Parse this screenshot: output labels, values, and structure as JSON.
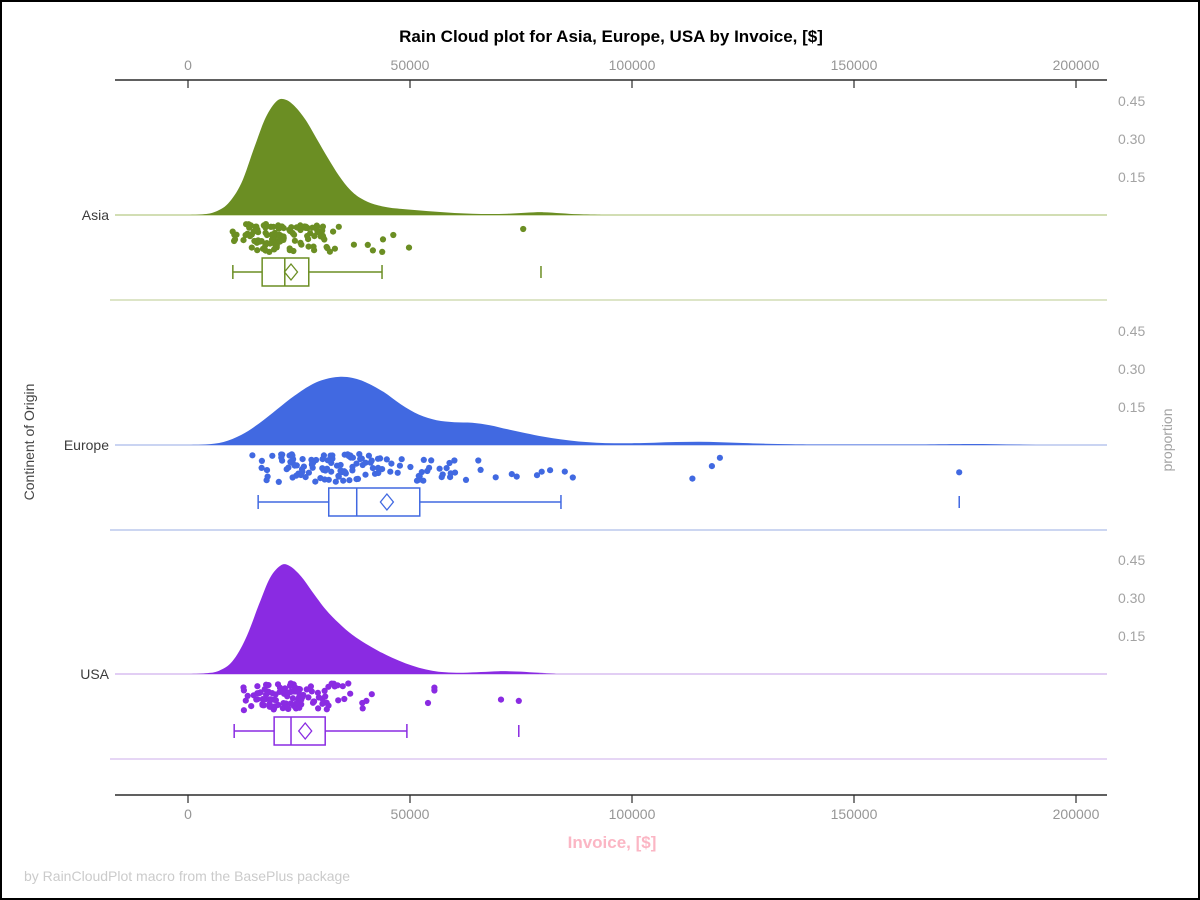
{
  "title": "Rain Cloud plot for Asia, Europe, USA by Invoice, [$]",
  "xlabel": "Invoice, [$]",
  "ylabel_left": "Continent of Origin",
  "ylabel_right": "proportion",
  "footer": "by RainCloudPlot macro from the BasePlus package",
  "colors": {
    "xlabel_pink": "#FBB6C4",
    "tick_gray": "#969696",
    "footer_gray": "#cbcbcb",
    "asia_green": "#6B8E23",
    "europe_blue": "#4169E1",
    "usa_purple": "#8A2BE2"
  },
  "axis": {
    "min": 0,
    "max": 200000,
    "ticks": [
      0,
      50000,
      100000,
      150000,
      200000
    ],
    "tick_labels": [
      "0",
      "50000",
      "100000",
      "150000",
      "200000"
    ]
  },
  "proportion_tick_labels": [
    "0.45",
    "0.30",
    "0.15"
  ],
  "chart_data": {
    "type": "raincloud",
    "x_axis": {
      "label": "Invoice, [$]",
      "min": 0,
      "max": 200000,
      "ticks": [
        0,
        50000,
        100000,
        150000,
        200000
      ]
    },
    "proportion_axis": {
      "label": "proportion",
      "ticks": [
        0.15,
        0.3,
        0.45
      ]
    },
    "categories": [
      "Asia",
      "Europe",
      "USA"
    ],
    "groups": [
      {
        "name": "Asia",
        "color": "#6B8E23",
        "baseline_color": "#c3d39b",
        "separator_color": "#dde5c7",
        "density_proportion_by_value": [
          [
            0,
            0
          ],
          [
            3000,
            0.002
          ],
          [
            6000,
            0.012
          ],
          [
            9000,
            0.045
          ],
          [
            12000,
            0.125
          ],
          [
            15000,
            0.27
          ],
          [
            17500,
            0.385
          ],
          [
            20000,
            0.45
          ],
          [
            22000,
            0.455
          ],
          [
            24000,
            0.43
          ],
          [
            26500,
            0.375
          ],
          [
            29000,
            0.3
          ],
          [
            31500,
            0.225
          ],
          [
            34000,
            0.155
          ],
          [
            36500,
            0.1
          ],
          [
            39000,
            0.065
          ],
          [
            42000,
            0.042
          ],
          [
            45000,
            0.03
          ],
          [
            48000,
            0.024
          ],
          [
            52000,
            0.018
          ],
          [
            56000,
            0.013
          ],
          [
            60000,
            0.008
          ],
          [
            64000,
            0.005
          ],
          [
            68000,
            0.004
          ],
          [
            72000,
            0.005
          ],
          [
            76000,
            0.009
          ],
          [
            80000,
            0.011
          ],
          [
            84000,
            0.007
          ],
          [
            88000,
            0.003
          ],
          [
            93000,
            0.001
          ],
          [
            100000,
            0
          ],
          [
            200000,
            0
          ]
        ],
        "box": {
          "whisker_low": 10100,
          "q1": 16700,
          "median": 21800,
          "mean": 23200,
          "q3": 27200,
          "whisker_high": 43700,
          "outliers": [
            79500
          ]
        },
        "rain": {
          "n": 118,
          "seed": 11,
          "median": 22000,
          "log_sigma": 0.34,
          "clamp_min": 9800,
          "clamp_max": 56000,
          "extra_values": [
            75500
          ]
        }
      },
      {
        "name": "Europe",
        "color": "#4169E1",
        "baseline_color": "#b9c6ee",
        "separator_color": "#ccd6f1",
        "density_proportion_by_value": [
          [
            0,
            0
          ],
          [
            4000,
            0.002
          ],
          [
            8000,
            0.012
          ],
          [
            12000,
            0.04
          ],
          [
            16000,
            0.085
          ],
          [
            20000,
            0.14
          ],
          [
            24000,
            0.195
          ],
          [
            28000,
            0.24
          ],
          [
            31000,
            0.26
          ],
          [
            34000,
            0.269
          ],
          [
            37000,
            0.265
          ],
          [
            40000,
            0.248
          ],
          [
            44000,
            0.21
          ],
          [
            48000,
            0.16
          ],
          [
            52000,
            0.12
          ],
          [
            56000,
            0.098
          ],
          [
            60000,
            0.09
          ],
          [
            64000,
            0.088
          ],
          [
            68000,
            0.078
          ],
          [
            72000,
            0.062
          ],
          [
            76000,
            0.047
          ],
          [
            80000,
            0.033
          ],
          [
            84000,
            0.022
          ],
          [
            88000,
            0.014
          ],
          [
            92000,
            0.009
          ],
          [
            96000,
            0.007
          ],
          [
            100000,
            0.007
          ],
          [
            105000,
            0.009
          ],
          [
            110000,
            0.012
          ],
          [
            115000,
            0.013
          ],
          [
            120000,
            0.011
          ],
          [
            125000,
            0.008
          ],
          [
            130000,
            0.005
          ],
          [
            136000,
            0.003
          ],
          [
            143000,
            0.002
          ],
          [
            152000,
            0.002
          ],
          [
            162000,
            0.002
          ],
          [
            170000,
            0.003
          ],
          [
            176000,
            0.004
          ],
          [
            182000,
            0.003
          ],
          [
            188000,
            0.001
          ],
          [
            194000,
            0
          ],
          [
            200000,
            0
          ]
        ],
        "box": {
          "whisker_low": 15800,
          "q1": 31700,
          "median": 38000,
          "mean": 44800,
          "q3": 52200,
          "whisker_high": 84000,
          "outliers": [
            173700
          ]
        },
        "rain": {
          "n": 132,
          "seed": 23,
          "median": 37500,
          "log_sigma": 0.38,
          "clamp_min": 14500,
          "clamp_max": 93000,
          "extra_values": [
            113600,
            118000,
            119800,
            173700
          ]
        }
      },
      {
        "name": "USA",
        "color": "#8A2BE2",
        "baseline_color": "#d9bdf0",
        "separator_color": "#e6d6f5",
        "density_proportion_by_value": [
          [
            0,
            0
          ],
          [
            4000,
            0.003
          ],
          [
            7000,
            0.013
          ],
          [
            10000,
            0.05
          ],
          [
            13000,
            0.14
          ],
          [
            16000,
            0.275
          ],
          [
            18500,
            0.38
          ],
          [
            21000,
            0.43
          ],
          [
            23000,
            0.425
          ],
          [
            25500,
            0.385
          ],
          [
            28000,
            0.325
          ],
          [
            31000,
            0.255
          ],
          [
            34000,
            0.2
          ],
          [
            37000,
            0.155
          ],
          [
            40000,
            0.12
          ],
          [
            43000,
            0.09
          ],
          [
            46000,
            0.064
          ],
          [
            49000,
            0.042
          ],
          [
            52000,
            0.025
          ],
          [
            55000,
            0.013
          ],
          [
            58000,
            0.007
          ],
          [
            62000,
            0.005
          ],
          [
            66000,
            0.008
          ],
          [
            70000,
            0.011
          ],
          [
            74000,
            0.01
          ],
          [
            78000,
            0.006
          ],
          [
            83000,
            0.002
          ],
          [
            89000,
            0
          ],
          [
            200000,
            0
          ]
        ],
        "box": {
          "whisker_low": 10400,
          "q1": 19400,
          "median": 23200,
          "mean": 26400,
          "q3": 30900,
          "whisker_high": 49300,
          "outliers": [
            74500
          ]
        },
        "rain": {
          "n": 118,
          "seed": 37,
          "median": 23000,
          "log_sigma": 0.31,
          "clamp_min": 11200,
          "clamp_max": 55500,
          "extra_values": [
            70500,
            74500
          ]
        }
      }
    ]
  }
}
